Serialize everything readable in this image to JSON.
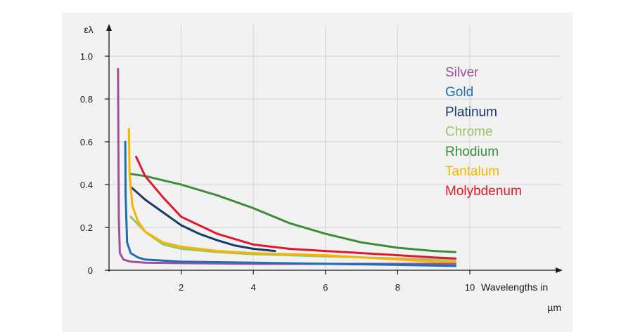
{
  "chart_data": {
    "type": "line",
    "title": "",
    "xlabel_line1": "Wavelengths in",
    "xlabel_line2": "µm",
    "ylabel": "ελ",
    "xlim": [
      0,
      10
    ],
    "ylim": [
      0,
      1.0
    ],
    "x_ticks": [
      "2",
      "4",
      "6",
      "8",
      "10"
    ],
    "y_ticks": [
      "0",
      "0.2",
      "0.4",
      "0.6",
      "0.8",
      "1.0"
    ],
    "x_tick_values": [
      2,
      4,
      6,
      8,
      10
    ],
    "y_tick_values": [
      0,
      0.2,
      0.4,
      0.6,
      0.8,
      1.0
    ],
    "grid": true,
    "legend_position": "top-right",
    "series": [
      {
        "name": "Silver",
        "color": "#a0509e",
        "points": [
          [
            0.25,
            0.94
          ],
          [
            0.26,
            0.6
          ],
          [
            0.27,
            0.25
          ],
          [
            0.3,
            0.08
          ],
          [
            0.4,
            0.05
          ],
          [
            0.6,
            0.04
          ],
          [
            1,
            0.035
          ],
          [
            2,
            0.033
          ],
          [
            4,
            0.03
          ],
          [
            6,
            0.03
          ],
          [
            8,
            0.03
          ],
          [
            9.6,
            0.03
          ]
        ]
      },
      {
        "name": "Gold",
        "color": "#1f6fb5",
        "points": [
          [
            0.45,
            0.6
          ],
          [
            0.46,
            0.35
          ],
          [
            0.5,
            0.13
          ],
          [
            0.6,
            0.08
          ],
          [
            0.8,
            0.06
          ],
          [
            1,
            0.05
          ],
          [
            2,
            0.04
          ],
          [
            4,
            0.035
          ],
          [
            6,
            0.03
          ],
          [
            8,
            0.025
          ],
          [
            9.6,
            0.02
          ]
        ]
      },
      {
        "name": "Platinum",
        "color": "#1a3a6b",
        "points": [
          [
            0.6,
            0.39
          ],
          [
            1,
            0.33
          ],
          [
            1.5,
            0.27
          ],
          [
            2,
            0.21
          ],
          [
            2.5,
            0.17
          ],
          [
            3,
            0.14
          ],
          [
            3.5,
            0.115
          ],
          [
            4,
            0.1
          ],
          [
            4.6,
            0.09
          ]
        ]
      },
      {
        "name": "Chrome",
        "color": "#9cc46a",
        "points": [
          [
            0.6,
            0.25
          ],
          [
            1,
            0.18
          ],
          [
            1.5,
            0.12
          ],
          [
            2,
            0.1
          ],
          [
            3,
            0.085
          ],
          [
            4,
            0.075
          ],
          [
            5,
            0.07
          ],
          [
            6,
            0.065
          ],
          [
            7,
            0.06
          ],
          [
            8,
            0.055
          ],
          [
            9,
            0.05
          ],
          [
            9.6,
            0.05
          ]
        ]
      },
      {
        "name": "Rhodium",
        "color": "#3c8c3c",
        "points": [
          [
            0.6,
            0.45
          ],
          [
            1,
            0.44
          ],
          [
            2,
            0.4
          ],
          [
            3,
            0.35
          ],
          [
            4,
            0.29
          ],
          [
            5,
            0.22
          ],
          [
            6,
            0.17
          ],
          [
            7,
            0.13
          ],
          [
            8,
            0.105
          ],
          [
            9,
            0.09
          ],
          [
            9.6,
            0.085
          ]
        ]
      },
      {
        "name": "Tantalum",
        "color": "#f7b500",
        "points": [
          [
            0.55,
            0.66
          ],
          [
            0.57,
            0.45
          ],
          [
            0.65,
            0.3
          ],
          [
            0.8,
            0.23
          ],
          [
            1,
            0.18
          ],
          [
            1.5,
            0.13
          ],
          [
            2,
            0.11
          ],
          [
            3,
            0.09
          ],
          [
            4,
            0.08
          ],
          [
            5,
            0.075
          ],
          [
            6,
            0.07
          ],
          [
            7,
            0.06
          ],
          [
            8,
            0.05
          ],
          [
            9,
            0.04
          ],
          [
            9.6,
            0.04
          ]
        ]
      },
      {
        "name": "Molybdenum",
        "color": "#e0182d",
        "points": [
          [
            0.75,
            0.53
          ],
          [
            1,
            0.44
          ],
          [
            1.5,
            0.34
          ],
          [
            2,
            0.25
          ],
          [
            3,
            0.17
          ],
          [
            4,
            0.12
          ],
          [
            5,
            0.1
          ],
          [
            6,
            0.09
          ],
          [
            7,
            0.08
          ],
          [
            8,
            0.07
          ],
          [
            9,
            0.06
          ],
          [
            9.6,
            0.055
          ]
        ]
      }
    ]
  }
}
